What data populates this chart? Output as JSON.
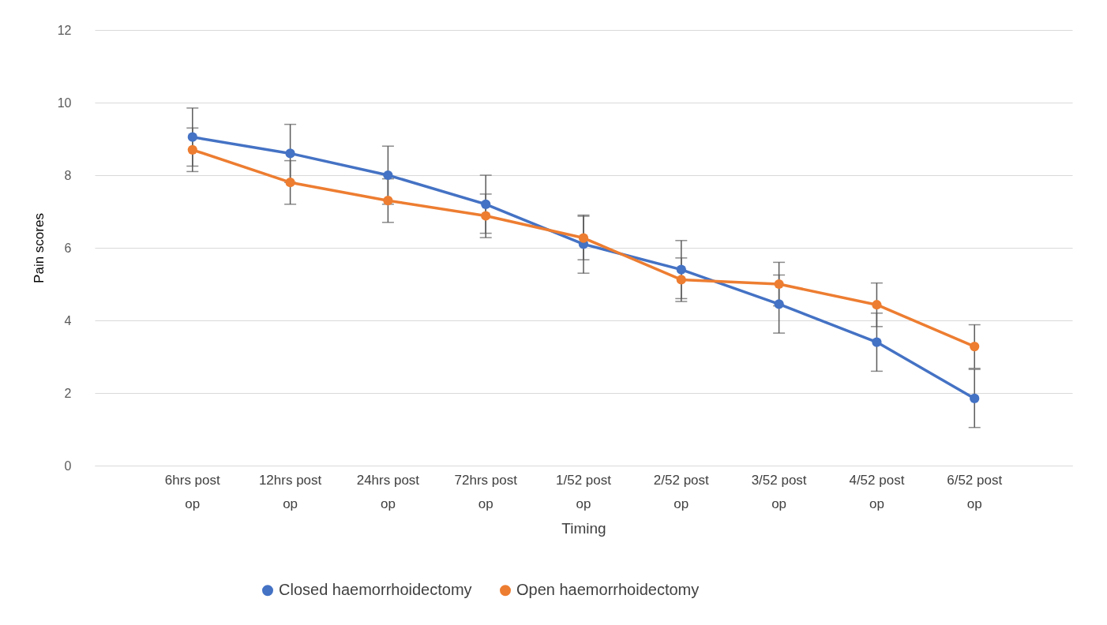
{
  "chart_data": {
    "type": "line",
    "categories": [
      "6hrs post op",
      "12hrs post op",
      "24hrs post op",
      "72hrs post op",
      "1/52 post op",
      "2/52 post op",
      "3/52 post op",
      "4/52 post op",
      "6/52 post op"
    ],
    "series": [
      {
        "name": "Closed haemorrhoidectomy",
        "color": "#4472c4",
        "values": [
          9.05,
          8.6,
          8.0,
          7.2,
          6.1,
          5.4,
          4.45,
          3.4,
          1.85
        ],
        "errors": [
          0.8,
          0.8,
          0.8,
          0.8,
          0.8,
          0.8,
          0.8,
          0.8,
          0.8
        ]
      },
      {
        "name": "Open haemorrhoidectomy",
        "color": "#ed7d31",
        "values": [
          8.7,
          7.8,
          7.3,
          6.88,
          6.27,
          5.12,
          5.0,
          4.43,
          3.28
        ],
        "errors": [
          0.6,
          0.6,
          0.6,
          0.6,
          0.6,
          0.6,
          0.6,
          0.6,
          0.6
        ]
      }
    ],
    "xlabel": "Timing",
    "ylabel": "Pain scores",
    "ylim": [
      0,
      12
    ],
    "yticks": [
      0,
      2,
      4,
      6,
      8,
      10,
      12
    ],
    "grid": "y",
    "legend": "bottom",
    "marker": "circle",
    "line_style": "solid"
  }
}
